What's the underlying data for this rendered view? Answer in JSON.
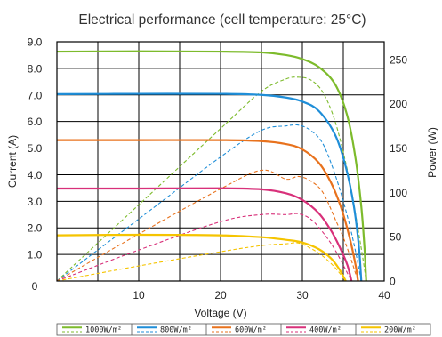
{
  "chart_data": {
    "type": "line",
    "title": "Electrical performance (cell temperature: 25°C)",
    "xlabel": "Voltage (V)",
    "ylabel": "Current (A)",
    "y2label": "Power (W)",
    "xlim": [
      0,
      40
    ],
    "ylim": [
      0,
      9
    ],
    "y2lim": [
      0,
      270
    ],
    "x_ticks": [
      "10",
      "20",
      "30",
      "40"
    ],
    "x_origin_label": "0",
    "y_ticks": [
      "1.0",
      "2.0",
      "3.0",
      "4.0",
      "5.0",
      "6.0",
      "7.0",
      "8.0",
      "9.0"
    ],
    "y2_ticks": [
      "0",
      "50",
      "100",
      "150",
      "200",
      "250"
    ],
    "grid": true,
    "legend_position": "bottom",
    "series": [
      {
        "name": "1000W/m²",
        "color": "#7dbb2c",
        "current": [
          [
            0,
            8.63
          ],
          [
            10,
            8.64
          ],
          [
            20,
            8.63
          ],
          [
            25,
            8.6
          ],
          [
            28,
            8.5
          ],
          [
            30,
            8.35
          ],
          [
            32,
            8.05
          ],
          [
            34,
            7.4
          ],
          [
            35.5,
            6.2
          ],
          [
            36.5,
            4.6
          ],
          [
            37.2,
            2.8
          ],
          [
            37.6,
            1.2
          ],
          [
            37.8,
            0
          ]
        ],
        "power": [
          [
            0,
            0
          ],
          [
            10,
            86
          ],
          [
            20,
            172
          ],
          [
            25,
            214
          ],
          [
            28,
            228
          ],
          [
            29.5,
            230
          ],
          [
            31,
            227
          ],
          [
            32.5,
            213
          ],
          [
            34,
            180
          ],
          [
            35.5,
            125
          ],
          [
            36.5,
            75
          ],
          [
            37.4,
            25
          ],
          [
            37.8,
            0
          ]
        ]
      },
      {
        "name": "800W/m²",
        "color": "#1f8ed8",
        "current": [
          [
            0,
            7.03
          ],
          [
            10,
            7.04
          ],
          [
            20,
            7.04
          ],
          [
            25,
            7.0
          ],
          [
            28,
            6.9
          ],
          [
            30,
            6.75
          ],
          [
            32,
            6.4
          ],
          [
            34,
            5.5
          ],
          [
            35.3,
            4.3
          ],
          [
            36.3,
            2.8
          ],
          [
            36.9,
            1.3
          ],
          [
            37.2,
            0
          ]
        ],
        "power": [
          [
            0,
            0
          ],
          [
            10,
            70
          ],
          [
            20,
            140
          ],
          [
            25,
            170
          ],
          [
            28,
            175
          ],
          [
            29.5,
            176
          ],
          [
            31,
            170
          ],
          [
            32.5,
            155
          ],
          [
            34,
            120
          ],
          [
            35.3,
            80
          ],
          [
            36.3,
            42
          ],
          [
            37.2,
            0
          ]
        ]
      },
      {
        "name": "600W/m²",
        "color": "#e8721d",
        "current": [
          [
            0,
            5.3
          ],
          [
            10,
            5.3
          ],
          [
            20,
            5.3
          ],
          [
            25,
            5.26
          ],
          [
            28,
            5.15
          ],
          [
            30,
            4.95
          ],
          [
            32,
            4.45
          ],
          [
            33.5,
            3.7
          ],
          [
            34.8,
            2.7
          ],
          [
            35.8,
            1.6
          ],
          [
            36.5,
            0.6
          ],
          [
            36.8,
            0
          ]
        ],
        "power": [
          [
            0,
            0
          ],
          [
            10,
            53
          ],
          [
            20,
            104
          ],
          [
            25,
            125
          ],
          [
            28,
            115
          ],
          [
            29.5,
            118
          ],
          [
            31,
            113
          ],
          [
            32.5,
            100
          ],
          [
            34,
            70
          ],
          [
            35.3,
            42
          ],
          [
            36.8,
            0
          ]
        ]
      },
      {
        "name": "400W/m²",
        "color": "#d8307a",
        "current": [
          [
            0,
            3.48
          ],
          [
            10,
            3.48
          ],
          [
            20,
            3.49
          ],
          [
            25,
            3.45
          ],
          [
            28,
            3.3
          ],
          [
            30,
            3.05
          ],
          [
            32,
            2.55
          ],
          [
            33.5,
            1.9
          ],
          [
            34.6,
            1.25
          ],
          [
            35.5,
            0.6
          ],
          [
            36,
            0
          ]
        ],
        "power": [
          [
            0,
            0
          ],
          [
            10,
            35
          ],
          [
            20,
            67
          ],
          [
            25,
            75
          ],
          [
            28,
            75
          ],
          [
            29.5,
            76
          ],
          [
            31,
            70
          ],
          [
            32.5,
            55
          ],
          [
            34,
            35
          ],
          [
            36,
            0
          ]
        ]
      },
      {
        "name": "200W/m²",
        "color": "#f5c400",
        "current": [
          [
            0,
            1.72
          ],
          [
            10,
            1.74
          ],
          [
            20,
            1.72
          ],
          [
            25,
            1.65
          ],
          [
            28,
            1.55
          ],
          [
            30,
            1.45
          ],
          [
            32,
            1.2
          ],
          [
            33.5,
            0.85
          ],
          [
            34.5,
            0.45
          ],
          [
            35.3,
            0
          ]
        ],
        "power": [
          [
            0,
            0
          ],
          [
            10,
            17
          ],
          [
            20,
            33
          ],
          [
            25,
            40
          ],
          [
            28,
            42
          ],
          [
            29.5,
            43
          ],
          [
            31,
            37
          ],
          [
            32.5,
            28
          ],
          [
            34,
            15
          ],
          [
            35.3,
            0
          ]
        ]
      }
    ]
  }
}
